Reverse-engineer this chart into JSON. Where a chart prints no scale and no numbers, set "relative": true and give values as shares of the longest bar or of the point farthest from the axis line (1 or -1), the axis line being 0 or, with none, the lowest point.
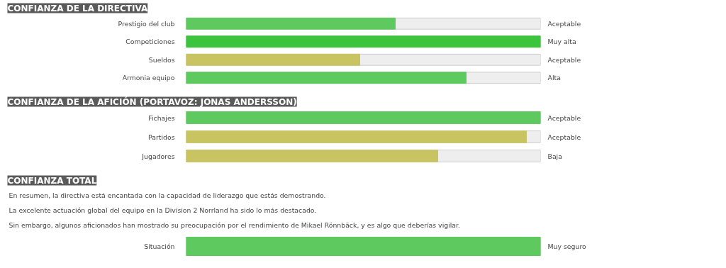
{
  "chart_data": [
    {
      "type": "bar",
      "orientation": "horizontal",
      "relative": true,
      "title": "CONFIANZA DE LA DIRECTIVA",
      "categories": [
        "Prestigio del club",
        "Competiciones",
        "Sueldos",
        "Armonia equipo"
      ],
      "values": [
        0.59,
        1,
        0.49,
        0.79
      ],
      "colors": [
        "#5ec95e",
        "#3cc43c",
        "#c8c462",
        "#5ec95e"
      ],
      "annotations": [
        "Aceptable",
        "Muy alta",
        "Aceptable",
        "Alta"
      ]
    },
    {
      "type": "bar",
      "orientation": "horizontal",
      "relative": true,
      "title": "CONFIANZA DE LA AFICIÓN (PORTAVOZ: JONAS ANDERSSON)",
      "categories": [
        "Fichajes",
        "Partidos",
        "Jugadores"
      ],
      "values": [
        1,
        0.96,
        0.71
      ],
      "colors": [
        "#5ec95e",
        "#c8c462",
        "#c8c462"
      ],
      "annotations": [
        "Aceptable",
        "Aceptable",
        "Baja"
      ]
    },
    {
      "type": "bar",
      "orientation": "horizontal",
      "relative": true,
      "title": "CONFIANZA TOTAL",
      "categories": [
        "Situación"
      ],
      "values": [
        1
      ],
      "colors": [
        "#5ec95e"
      ],
      "annotations": [
        "En resumen, la directiva está encantada con la capacidad de liderazgo que estás demostrando.",
        "La excelente actuación global del equipo en la Division 2 Norrland ha sido lo más destacado.",
        "Sin embargo, algunos aficionados han mostrado su preocupación por el rendimiento de Mikael Rönnbäck, y es algo que deberías vigilar.",
        "Muy seguro"
      ]
    }
  ]
}
